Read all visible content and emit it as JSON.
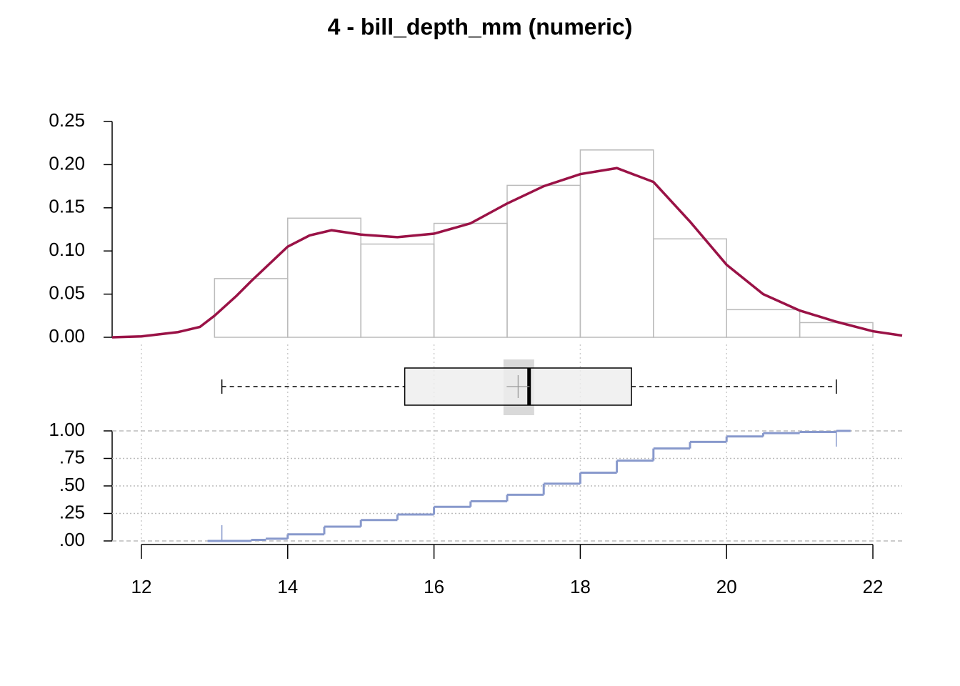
{
  "chart_data": [
    {
      "type": "histogram",
      "title": "4 - bill_depth_mm (numeric)",
      "bins": [
        13,
        14,
        15,
        16,
        17,
        18,
        19,
        20,
        21,
        22
      ],
      "values": [
        0.068,
        0.138,
        0.108,
        0.132,
        0.176,
        0.217,
        0.114,
        0.032,
        0.017
      ],
      "color": "#bbbbbb",
      "density": {
        "color": "#9a1246",
        "x": [
          11.6,
          12,
          12.5,
          12.8,
          13,
          13.3,
          13.5,
          14,
          14.3,
          14.6,
          15,
          15.5,
          16,
          16.5,
          17,
          17.5,
          18,
          18.5,
          19,
          19.5,
          20,
          20.5,
          21,
          21.5,
          22,
          22.4
        ],
        "y": [
          0,
          0.001,
          0.006,
          0.012,
          0.025,
          0.048,
          0.065,
          0.105,
          0.118,
          0.124,
          0.119,
          0.116,
          0.12,
          0.132,
          0.155,
          0.175,
          0.189,
          0.196,
          0.18,
          0.134,
          0.084,
          0.05,
          0.031,
          0.018,
          0.007,
          0.002
        ]
      },
      "ylim": [
        0,
        0.25
      ],
      "yticks": [
        {
          "value": 0,
          "label": "0.00"
        },
        0.05,
        {
          "value": 0.1,
          "label": "0.10"
        },
        0.15,
        {
          "value": 0.2,
          "label": "0.20"
        },
        0.25
      ]
    },
    {
      "type": "boxplot",
      "whisker_low": 13.1,
      "q1": 15.6,
      "median": 17.3,
      "q3": 18.7,
      "whisker_high": 21.5,
      "mean": 17.15,
      "mean_ci": [
        16.95,
        17.37
      ]
    },
    {
      "type": "ecdf",
      "color": "#8899cc",
      "x": [
        13.1,
        13.5,
        13.7,
        14,
        14.5,
        15,
        15.5,
        16,
        16.5,
        17,
        17.5,
        18,
        18.5,
        19,
        19.5,
        20,
        20.5,
        21,
        21.5
      ],
      "y": [
        0,
        0.01,
        0.02,
        0.06,
        0.13,
        0.19,
        0.24,
        0.31,
        0.36,
        0.42,
        0.52,
        0.62,
        0.73,
        0.84,
        0.9,
        0.95,
        0.98,
        0.99,
        1
      ],
      "xlim": [
        11.6,
        22.4
      ],
      "xticks": [
        12,
        14,
        16,
        18,
        20,
        22
      ],
      "ylim": [
        0,
        1
      ],
      "yticks": [
        {
          "value": 0,
          "label": ".00"
        },
        {
          "value": 0.25,
          "label": ".25"
        },
        {
          "value": 0.5,
          "label": ".50"
        },
        {
          "value": 0.75,
          "label": ".75"
        },
        {
          "value": 1,
          "label": "1.00"
        }
      ]
    }
  ]
}
